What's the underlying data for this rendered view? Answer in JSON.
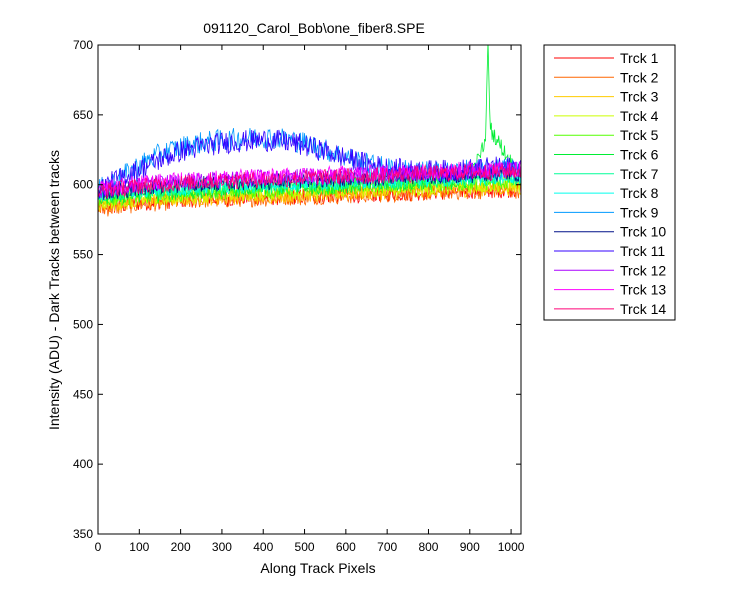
{
  "chart_data": {
    "type": "line",
    "title": "091120_Carol_Bob\\one_fiber8.SPE",
    "xlabel": "Along Track Pixels",
    "ylabel": "Intensity (ADU) - Dark Tracks between tracks",
    "xlim": [
      0,
      1024
    ],
    "ylim": [
      350,
      700
    ],
    "xticks": [
      0,
      100,
      200,
      300,
      400,
      500,
      600,
      700,
      800,
      900,
      1000
    ],
    "yticks": [
      350,
      400,
      450,
      500,
      550,
      600,
      650,
      700
    ],
    "grid": false,
    "legend_position": "outside-right",
    "x_sample": [
      0,
      50,
      100,
      150,
      200,
      250,
      300,
      350,
      400,
      450,
      500,
      550,
      600,
      650,
      700,
      750,
      800,
      850,
      900,
      950,
      1024
    ],
    "series": [
      {
        "name": "Trck 1",
        "color": "#ff0000",
        "values": [
          583,
          585,
          587,
          588,
          589,
          590,
          590,
          590,
          591,
          591,
          592,
          592,
          593,
          593,
          594,
          594,
          595,
          595,
          596,
          596,
          597
        ]
      },
      {
        "name": "Trck 2",
        "color": "#ff6600",
        "values": [
          582,
          584,
          586,
          587,
          588,
          589,
          589,
          590,
          590,
          591,
          591,
          592,
          592,
          593,
          593,
          594,
          594,
          595,
          595,
          596,
          596
        ]
      },
      {
        "name": "Trck 3",
        "color": "#ffcc00",
        "values": [
          585,
          587,
          588,
          589,
          590,
          591,
          591,
          592,
          592,
          593,
          593,
          594,
          594,
          595,
          595,
          596,
          596,
          597,
          597,
          598,
          598
        ]
      },
      {
        "name": "Trck 4",
        "color": "#ccff00",
        "values": [
          587,
          589,
          590,
          591,
          592,
          593,
          593,
          594,
          594,
          595,
          595,
          596,
          596,
          597,
          597,
          598,
          598,
          599,
          599,
          600,
          600
        ]
      },
      {
        "name": "Trck 5",
        "color": "#55ff00",
        "values": [
          589,
          591,
          592,
          593,
          594,
          595,
          595,
          596,
          596,
          597,
          597,
          598,
          598,
          599,
          599,
          600,
          600,
          601,
          601,
          602,
          602
        ]
      },
      {
        "name": "Trck 6",
        "color": "#00ee33",
        "values": [
          590,
          592,
          593,
          594,
          595,
          596,
          597,
          597,
          598,
          598,
          599,
          599,
          600,
          600,
          601,
          601,
          602,
          602,
          603,
          640,
          604
        ]
      },
      {
        "name": "Trck 7",
        "color": "#00ff99",
        "values": [
          592,
          594,
          595,
          596,
          597,
          598,
          598,
          599,
          599,
          600,
          600,
          601,
          601,
          602,
          602,
          603,
          603,
          604,
          604,
          605,
          605
        ]
      },
      {
        "name": "Trck 8",
        "color": "#00ffee",
        "values": [
          593,
          595,
          596,
          597,
          598,
          599,
          600,
          600,
          601,
          601,
          602,
          602,
          603,
          603,
          604,
          604,
          605,
          605,
          606,
          606,
          607
        ]
      },
      {
        "name": "Trck 9",
        "color": "#0099ff",
        "values": [
          596,
          604,
          614,
          622,
          627,
          630,
          632,
          633,
          634,
          633,
          630,
          625,
          620,
          615,
          612,
          610,
          609,
          609,
          610,
          611,
          612
        ]
      },
      {
        "name": "Trck 10",
        "color": "#001188",
        "values": [
          594,
          596,
          598,
          599,
          600,
          601,
          601,
          602,
          602,
          603,
          603,
          604,
          604,
          605,
          605,
          606,
          606,
          607,
          607,
          608,
          608
        ]
      },
      {
        "name": "Trck 11",
        "color": "#3300ff",
        "values": [
          597,
          604,
          611,
          618,
          624,
          627,
          630,
          631,
          632,
          631,
          628,
          624,
          619,
          615,
          612,
          610,
          610,
          610,
          611,
          612,
          613
        ]
      },
      {
        "name": "Trck 12",
        "color": "#aa00ff",
        "values": [
          596,
          598,
          600,
          601,
          602,
          603,
          604,
          604,
          605,
          605,
          606,
          606,
          607,
          607,
          608,
          608,
          609,
          609,
          610,
          610,
          611
        ]
      },
      {
        "name": "Trck 13",
        "color": "#ff00ff",
        "values": [
          597,
          599,
          601,
          602,
          603,
          604,
          605,
          605,
          606,
          606,
          607,
          607,
          608,
          608,
          609,
          609,
          610,
          610,
          611,
          611,
          612
        ]
      },
      {
        "name": "Trck 14",
        "color": "#ff0077",
        "values": [
          595,
          597,
          599,
          600,
          601,
          602,
          603,
          603,
          604,
          604,
          605,
          605,
          606,
          606,
          607,
          607,
          608,
          608,
          609,
          609,
          610
        ]
      }
    ]
  }
}
